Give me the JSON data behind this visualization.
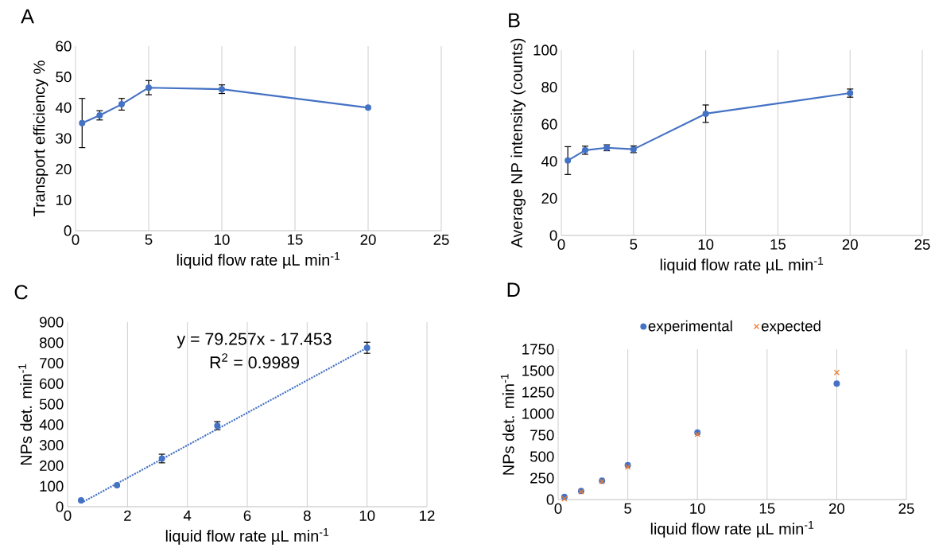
{
  "chart_data": [
    {
      "type": "line",
      "title": "A",
      "xlabel": "liquid flow rate µL min$^{-1}$",
      "ylabel": "Transport efficiency %",
      "xlim": [
        0,
        25
      ],
      "xticks": [
        0,
        5,
        10,
        15,
        20,
        25
      ],
      "ylim": [
        0,
        60
      ],
      "yticks": [
        0,
        10,
        20,
        30,
        40,
        50,
        60
      ],
      "grid": "x",
      "marker": "circle",
      "x": [
        0.45,
        1.65,
        3.15,
        5,
        10,
        20
      ],
      "series": [
        {
          "color": "#4472c4",
          "values": [
            35.0,
            37.5,
            41.1,
            46.5,
            46.0,
            40.0
          ],
          "errors": [
            8,
            1.5,
            1.9,
            2.3,
            1.4,
            null
          ]
        }
      ]
    },
    {
      "type": "line",
      "title": "B",
      "xlabel": "liquid flow rate µL min$^{-1}$",
      "ylabel": "Average NP intensity (counts)",
      "xlim": [
        0,
        25
      ],
      "xticks": [
        0,
        5,
        10,
        15,
        20,
        25
      ],
      "ylim": [
        0,
        100
      ],
      "yticks": [
        0,
        20,
        40,
        60,
        80,
        100
      ],
      "grid": "x",
      "marker": "circle",
      "x": [
        0.45,
        1.65,
        3.15,
        5,
        10,
        20
      ],
      "series": [
        {
          "color": "#4472c4",
          "values": [
            40.4,
            46.0,
            47.3,
            46.5,
            65.7,
            76.8
          ],
          "errors": [
            7.5,
            2.2,
            1.6,
            1.8,
            4.7,
            2.2
          ]
        }
      ]
    },
    {
      "type": "scatter",
      "title": "C",
      "xlabel": "liquid flow rate µL min$^{-1}$",
      "ylabel": "NPs det. min$^{-1}$",
      "xlim": [
        0,
        12
      ],
      "xticks": [
        0,
        2,
        4,
        6,
        8,
        10,
        12
      ],
      "ylim": [
        0,
        900
      ],
      "yticks": [
        0,
        100,
        200,
        300,
        400,
        500,
        600,
        700,
        800,
        900
      ],
      "grid": "x",
      "marker": "circle",
      "annotations": [
        "y = 79.257x - 17.453",
        "R$^{2}$ = 0.9989"
      ],
      "x": [
        0.45,
        1.65,
        3.15,
        5,
        10
      ],
      "series": [
        {
          "color": "#4472c4",
          "values": [
            31,
            105,
            235,
            395,
            775
          ],
          "errors": [
            null,
            null,
            21,
            20,
            27
          ]
        },
        {
          "type": "line",
          "color": "#4472c4",
          "x": [
            0.45,
            10
          ],
          "values": [
            18,
            775
          ],
          "marker": "none",
          "line_style": "dotted"
        }
      ]
    },
    {
      "type": "scatter",
      "title": "D",
      "xlabel": "liquid flow rate µL min$^{-1}$",
      "ylabel": "NPs det. min$^{-1}$",
      "xlim": [
        0,
        25
      ],
      "xticks": [
        0,
        5,
        10,
        15,
        20,
        25
      ],
      "ylim": [
        0,
        1750
      ],
      "yticks": [
        0,
        250,
        500,
        750,
        1000,
        1250,
        1500,
        1750
      ],
      "grid": "x",
      "legend": "top",
      "x": [
        0.45,
        1.65,
        3.15,
        5,
        10,
        20
      ],
      "series": [
        {
          "name": "experimental",
          "color": "#4472c4",
          "marker": "circle",
          "values": [
            30,
            100,
            220,
            400,
            780,
            1350
          ]
        },
        {
          "name": "expected",
          "color": "#ed7d31",
          "marker": "cross",
          "values": [
            10,
            90,
            210,
            380,
            760,
            1480
          ]
        }
      ]
    }
  ]
}
